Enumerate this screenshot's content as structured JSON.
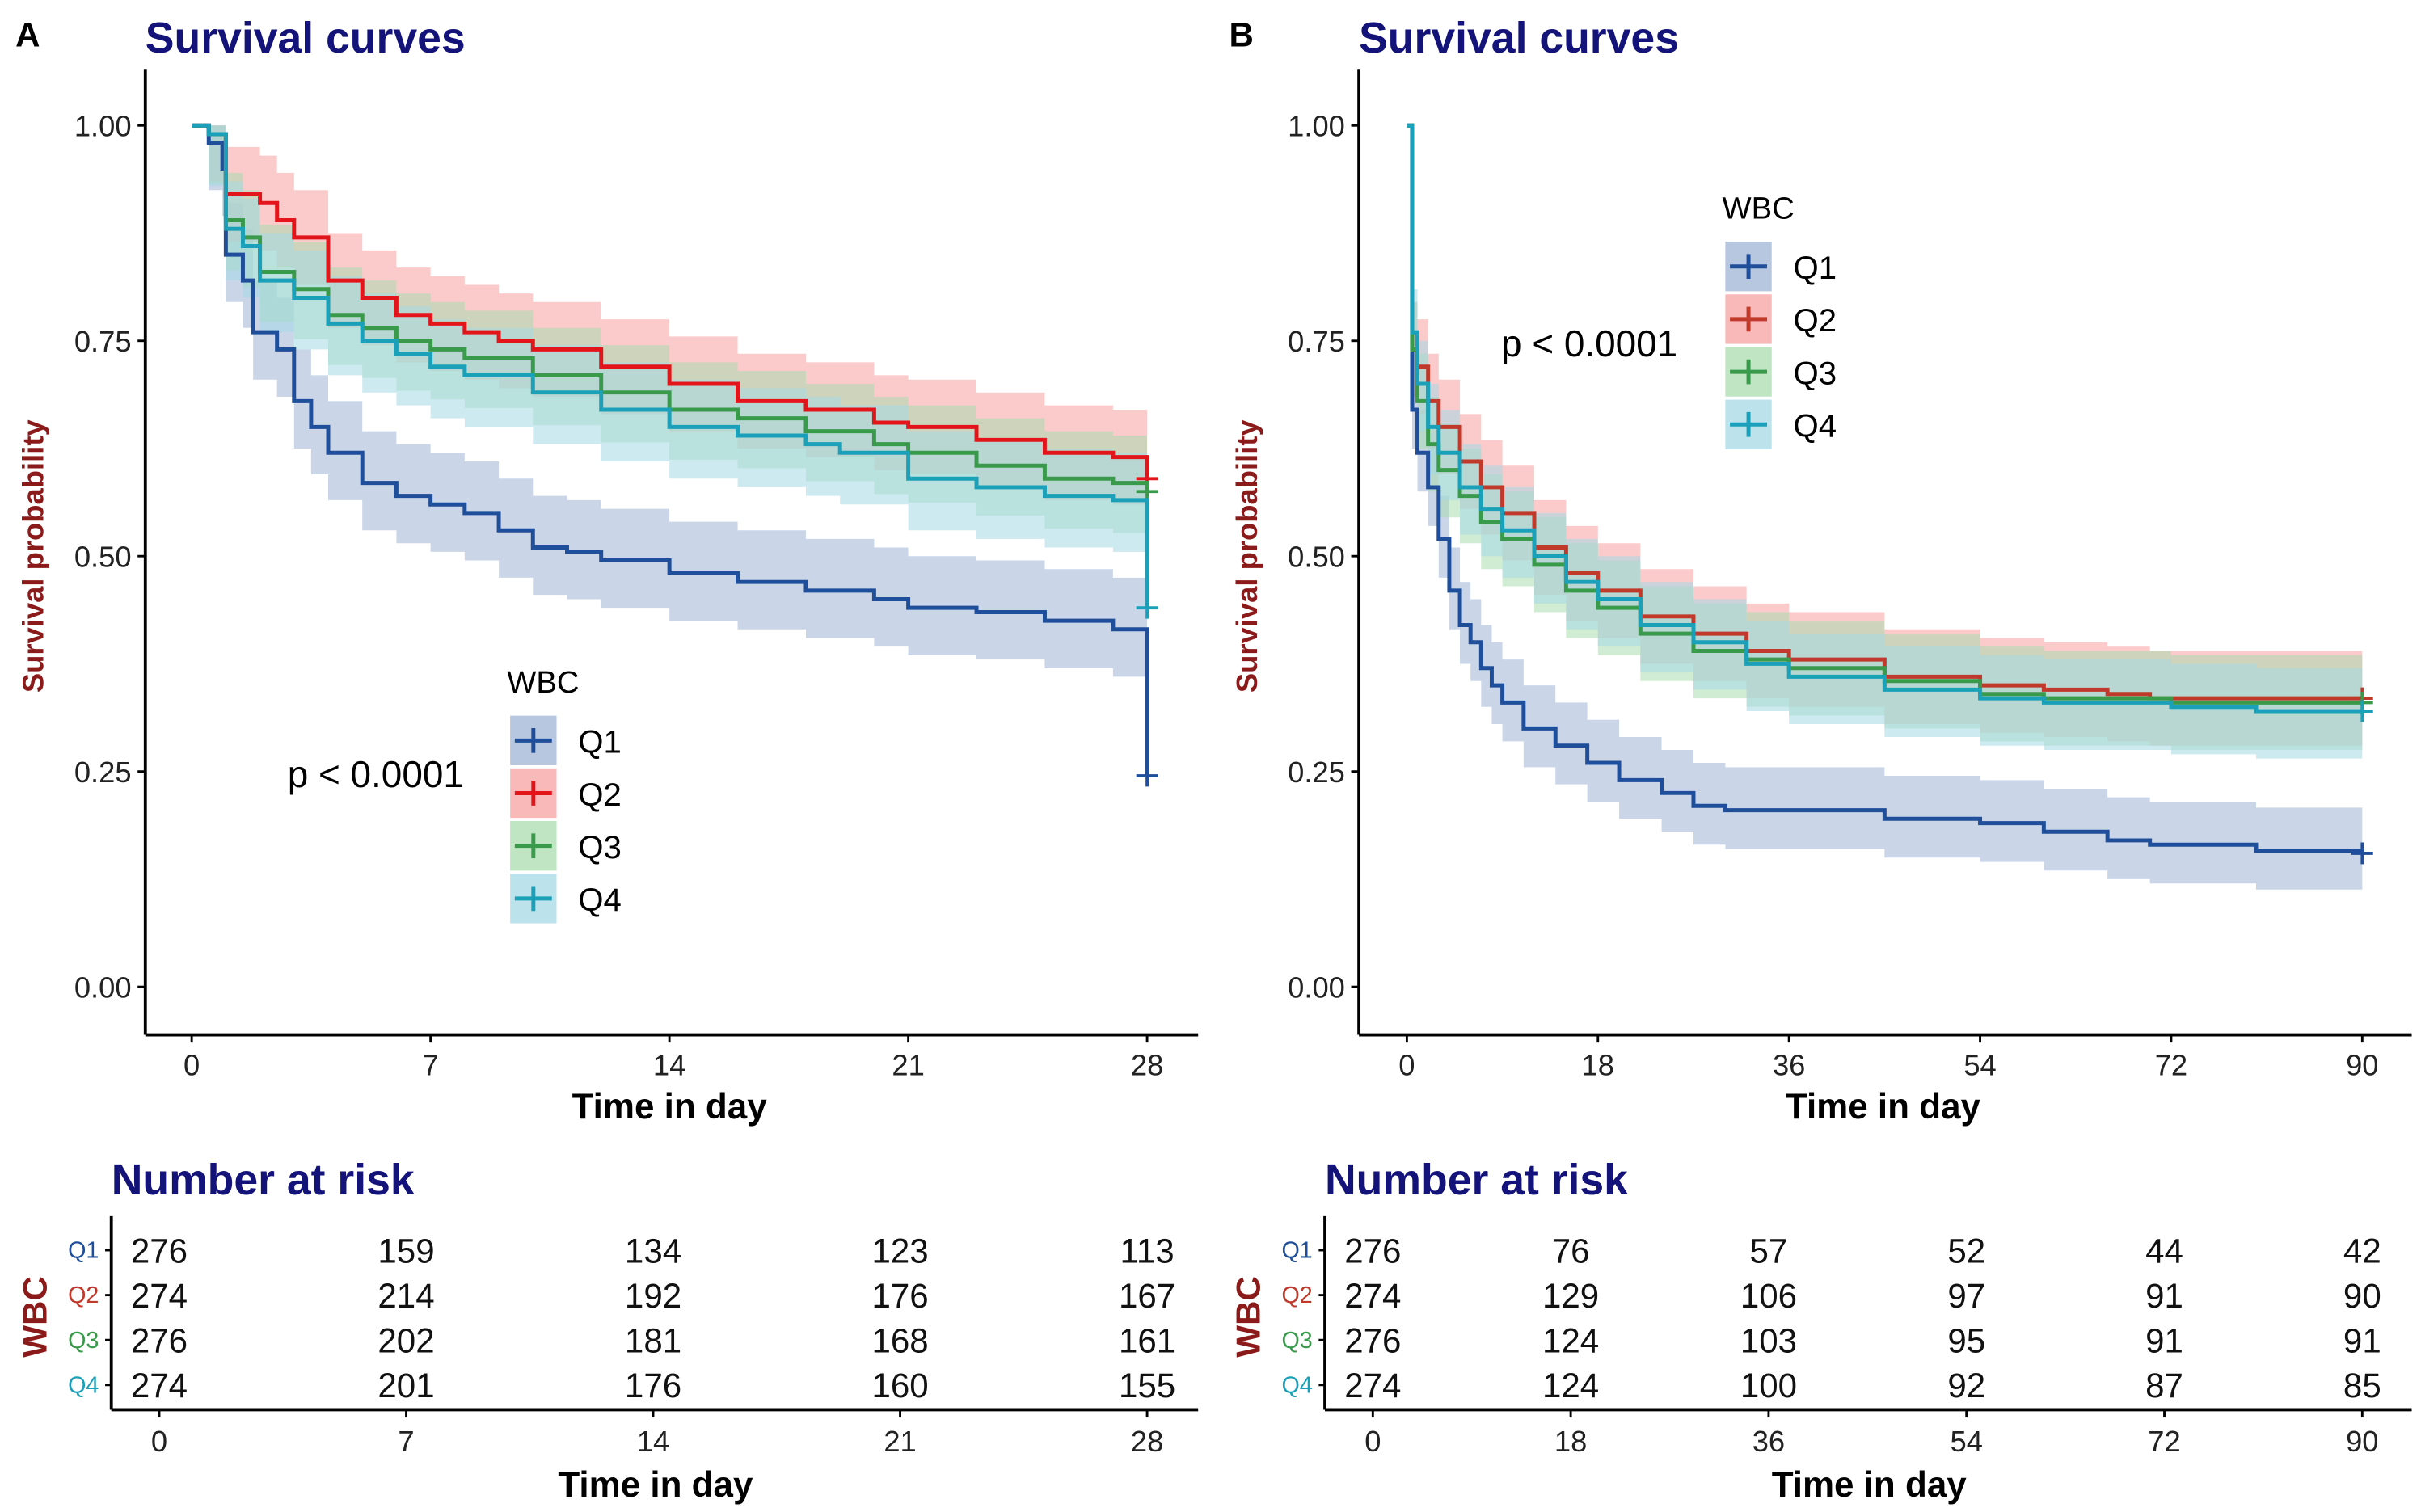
{
  "figure": {
    "panels": [
      "A",
      "B"
    ]
  },
  "chart_data": [
    {
      "panel": "A",
      "type": "line",
      "subtype": "kaplan-meier-step",
      "title": "Survival curves",
      "xlabel": "Time in day",
      "ylabel": "Survival probability",
      "xlim": [
        0,
        28
      ],
      "ylim": [
        0,
        1
      ],
      "xticks": [
        "0",
        "7",
        "14",
        "21",
        "28"
      ],
      "xtick_values": [
        0,
        7,
        14,
        21,
        28
      ],
      "yticks": [
        "0.00",
        "0.25",
        "0.50",
        "0.75",
        "1.00"
      ],
      "ytick_values": [
        0,
        0.25,
        0.5,
        0.75,
        1.0
      ],
      "grid": false,
      "pvalue": "p < 0.0001",
      "legend": {
        "title": "WBC",
        "placement": "center-left",
        "entries": [
          "Q1",
          "Q2",
          "Q3",
          "Q4"
        ]
      },
      "series": [
        {
          "name": "Q1",
          "color": "#1f4e9a",
          "band": "#9fb4d6",
          "x": [
            0,
            0.5,
            0.9,
            1.0,
            1.5,
            1.8,
            2.5,
            3.0,
            3.5,
            4.0,
            5.0,
            6.0,
            7.0,
            8.0,
            9.0,
            10.0,
            11.0,
            12.0,
            14.0,
            16.0,
            18.0,
            20.0,
            21.0,
            23.0,
            25.0,
            27.0,
            28.0
          ],
          "y": [
            1.0,
            0.98,
            0.95,
            0.85,
            0.82,
            0.76,
            0.74,
            0.68,
            0.65,
            0.62,
            0.585,
            0.57,
            0.56,
            0.55,
            0.53,
            0.51,
            0.505,
            0.495,
            0.48,
            0.47,
            0.46,
            0.45,
            0.44,
            0.435,
            0.425,
            0.415,
            0.41
          ],
          "end_drop": 0.245,
          "lower_offset": 0.055,
          "upper_offset": 0.06
        },
        {
          "name": "Q2",
          "color": "#e3151b",
          "band": "#f7a1a1",
          "x": [
            0,
            0.5,
            1.0,
            2.0,
            2.5,
            3.0,
            4.0,
            5.0,
            6.0,
            7.0,
            8.0,
            9.0,
            10.0,
            12.0,
            14.0,
            16.0,
            18.0,
            20.0,
            21.0,
            23.0,
            25.0,
            27.0,
            28.0
          ],
          "y": [
            1.0,
            0.99,
            0.92,
            0.91,
            0.89,
            0.87,
            0.82,
            0.8,
            0.78,
            0.77,
            0.76,
            0.75,
            0.74,
            0.72,
            0.7,
            0.68,
            0.67,
            0.655,
            0.65,
            0.635,
            0.62,
            0.615,
            0.61
          ],
          "end_drop": 0.59,
          "lower_offset": 0.055,
          "upper_offset": 0.055
        },
        {
          "name": "Q3",
          "color": "#3a9a4c",
          "band": "#a9dcae",
          "x": [
            0,
            0.5,
            1.0,
            1.5,
            2.0,
            3.0,
            4.0,
            5.0,
            6.0,
            7.0,
            8.0,
            10.0,
            12.0,
            14.0,
            16.0,
            18.0,
            20.0,
            21.0,
            23.0,
            25.0,
            27.0,
            28.0
          ],
          "y": [
            1.0,
            0.99,
            0.89,
            0.87,
            0.83,
            0.81,
            0.78,
            0.765,
            0.75,
            0.74,
            0.73,
            0.71,
            0.69,
            0.67,
            0.66,
            0.645,
            0.63,
            0.62,
            0.605,
            0.59,
            0.585,
            0.58
          ],
          "end_drop": 0.575,
          "lower_offset": 0.058,
          "upper_offset": 0.055
        },
        {
          "name": "Q4",
          "color": "#1aa0b8",
          "band": "#a6d9e6",
          "x": [
            0,
            0.5,
            1.0,
            1.5,
            2.0,
            3.0,
            4.0,
            5.0,
            6.0,
            7.0,
            8.0,
            10.0,
            12.0,
            14.0,
            16.0,
            18.0,
            19.0,
            21.0,
            23.0,
            25.0,
            27.0,
            28.0
          ],
          "y": [
            1.0,
            0.99,
            0.88,
            0.86,
            0.82,
            0.8,
            0.77,
            0.75,
            0.735,
            0.72,
            0.71,
            0.69,
            0.67,
            0.65,
            0.64,
            0.63,
            0.62,
            0.59,
            0.58,
            0.57,
            0.565,
            0.565
          ],
          "end_drop": 0.44,
          "lower_offset": 0.06,
          "upper_offset": 0.055
        }
      ],
      "risk_table": {
        "title": "Number at risk",
        "row_label": "WBC",
        "times": [
          0,
          7,
          14,
          21,
          28
        ],
        "rows": [
          {
            "name": "Q1",
            "color": "#1f4e9a",
            "values": [
              276,
              159,
              134,
              123,
              113
            ]
          },
          {
            "name": "Q2",
            "color": "#c0392b",
            "values": [
              274,
              214,
              192,
              176,
              167
            ]
          },
          {
            "name": "Q3",
            "color": "#3a9a4c",
            "values": [
              276,
              202,
              181,
              168,
              161
            ]
          },
          {
            "name": "Q4",
            "color": "#1aa0b8",
            "values": [
              274,
              201,
              176,
              160,
              155
            ]
          }
        ],
        "xlabel": "Time in day"
      }
    },
    {
      "panel": "B",
      "type": "line",
      "subtype": "kaplan-meier-step",
      "title": "Survival curves",
      "xlabel": "Time in day",
      "ylabel": "Survival probability",
      "xlim": [
        0,
        90
      ],
      "ylim": [
        0,
        1
      ],
      "xticks": [
        "0",
        "18",
        "36",
        "54",
        "72",
        "90"
      ],
      "xtick_values": [
        0,
        18,
        36,
        54,
        72,
        90
      ],
      "yticks": [
        "0.00",
        "0.25",
        "0.50",
        "0.75",
        "1.00"
      ],
      "ytick_values": [
        0,
        0.25,
        0.5,
        0.75,
        1.0
      ],
      "grid": false,
      "pvalue": "p < 0.0001",
      "legend": {
        "title": "WBC",
        "placement": "top-center",
        "entries": [
          "Q1",
          "Q2",
          "Q3",
          "Q4"
        ]
      },
      "series": [
        {
          "name": "Q1",
          "color": "#1f4e9a",
          "band": "#9fb4d6",
          "x": [
            0,
            0.5,
            1.0,
            2.0,
            3.0,
            4.0,
            5.0,
            6.0,
            7.0,
            8.0,
            9.0,
            11.0,
            14.0,
            17.0,
            20.0,
            24.0,
            27.0,
            30.0,
            36.0,
            45.0,
            54.0,
            60.0,
            66.0,
            70.0,
            80.0,
            90.0
          ],
          "y": [
            1.0,
            0.67,
            0.62,
            0.58,
            0.52,
            0.46,
            0.42,
            0.4,
            0.37,
            0.35,
            0.33,
            0.3,
            0.28,
            0.26,
            0.24,
            0.225,
            0.21,
            0.205,
            0.205,
            0.195,
            0.19,
            0.18,
            0.17,
            0.165,
            0.158,
            0.155
          ],
          "lower_offset": 0.045,
          "upper_offset": 0.05
        },
        {
          "name": "Q2",
          "color": "#c0392b",
          "band": "#f7a1a1",
          "x": [
            0,
            0.5,
            1.0,
            2.0,
            3.0,
            5.0,
            7.0,
            9.0,
            12.0,
            15.0,
            18.0,
            22.0,
            27.0,
            32.0,
            36.0,
            45.0,
            54.0,
            60.0,
            66.0,
            70.0,
            80.0,
            90.0
          ],
          "y": [
            1.0,
            0.74,
            0.72,
            0.68,
            0.65,
            0.61,
            0.58,
            0.55,
            0.51,
            0.48,
            0.46,
            0.43,
            0.41,
            0.39,
            0.38,
            0.36,
            0.35,
            0.345,
            0.34,
            0.335,
            0.335,
            0.335
          ],
          "lower_offset": 0.055,
          "upper_offset": 0.055
        },
        {
          "name": "Q3",
          "color": "#3a9a4c",
          "band": "#a9dcae",
          "x": [
            0,
            0.5,
            1.0,
            2.0,
            3.0,
            5.0,
            7.0,
            9.0,
            12.0,
            15.0,
            18.0,
            22.0,
            27.0,
            32.0,
            36.0,
            45.0,
            54.0,
            60.0,
            72.0,
            80.0,
            90.0
          ],
          "y": [
            1.0,
            0.74,
            0.68,
            0.63,
            0.6,
            0.57,
            0.54,
            0.52,
            0.49,
            0.46,
            0.44,
            0.41,
            0.39,
            0.38,
            0.37,
            0.355,
            0.34,
            0.335,
            0.33,
            0.33,
            0.33
          ],
          "lower_offset": 0.055,
          "upper_offset": 0.055
        },
        {
          "name": "Q4",
          "color": "#1aa0b8",
          "band": "#a6d9e6",
          "x": [
            0,
            0.5,
            1.0,
            2.0,
            3.0,
            5.0,
            7.0,
            9.0,
            12.0,
            15.0,
            18.0,
            22.0,
            27.0,
            32.0,
            36.0,
            45.0,
            54.0,
            60.0,
            72.0,
            80.0,
            90.0
          ],
          "y": [
            1.0,
            0.76,
            0.7,
            0.65,
            0.62,
            0.58,
            0.555,
            0.53,
            0.5,
            0.47,
            0.45,
            0.42,
            0.4,
            0.375,
            0.36,
            0.345,
            0.335,
            0.33,
            0.325,
            0.32,
            0.32
          ],
          "lower_offset": 0.055,
          "upper_offset": 0.05
        }
      ],
      "risk_table": {
        "title": "Number at risk",
        "row_label": "WBC",
        "times": [
          0,
          18,
          36,
          54,
          72,
          90
        ],
        "rows": [
          {
            "name": "Q1",
            "color": "#1f4e9a",
            "values": [
              276,
              76,
              57,
              52,
              44,
              42
            ]
          },
          {
            "name": "Q2",
            "color": "#c0392b",
            "values": [
              274,
              129,
              106,
              97,
              91,
              90
            ]
          },
          {
            "name": "Q3",
            "color": "#3a9a4c",
            "values": [
              276,
              124,
              103,
              95,
              91,
              91
            ]
          },
          {
            "name": "Q4",
            "color": "#1aa0b8",
            "values": [
              274,
              124,
              100,
              92,
              87,
              85
            ]
          }
        ],
        "xlabel": "Time in day"
      }
    }
  ]
}
